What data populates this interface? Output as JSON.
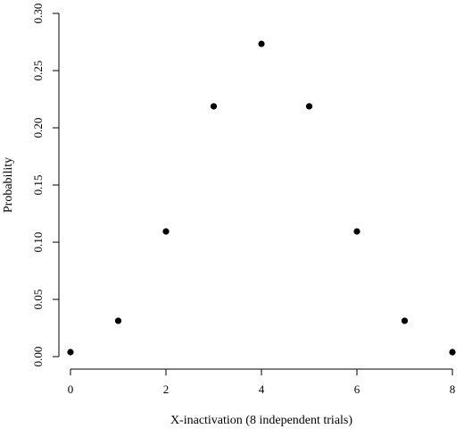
{
  "chart_data": {
    "type": "scatter",
    "title": "",
    "xlabel": "X-inactivation (8 independent trials)",
    "ylabel": "Probability",
    "x": [
      0,
      1,
      2,
      3,
      4,
      5,
      6,
      7,
      8
    ],
    "y": [
      0.0039,
      0.0313,
      0.1094,
      0.2188,
      0.2734,
      0.2188,
      0.1094,
      0.0313,
      0.0039
    ],
    "xlim": [
      0,
      8
    ],
    "ylim": [
      0,
      0.3
    ],
    "x_ticks": [
      "0",
      "2",
      "4",
      "6",
      "8"
    ],
    "y_ticks": [
      "0.00",
      "0.05",
      "0.10",
      "0.15",
      "0.20",
      "0.25",
      "0.30"
    ],
    "grid": false,
    "legend": "none"
  }
}
